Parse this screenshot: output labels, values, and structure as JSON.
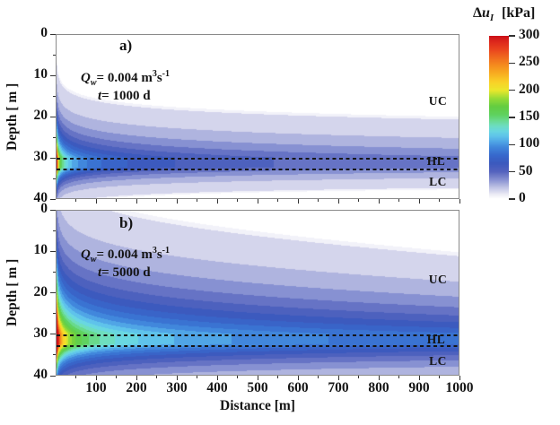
{
  "figure": {
    "background": "#ffffff"
  },
  "colorbar": {
    "title": {
      "delta": "Δ",
      "var": "u",
      "sub": "I",
      "units": "[kPa]"
    },
    "min": 0,
    "max": 300,
    "tick_values": [
      300,
      250,
      200,
      150,
      100,
      50,
      0
    ],
    "tick_labels": [
      "300",
      "250",
      "200",
      "150",
      "100",
      "50",
      "0"
    ],
    "stops": [
      [
        0,
        255,
        255,
        255
      ],
      [
        8,
        235,
        235,
        245
      ],
      [
        20,
        195,
        198,
        230
      ],
      [
        35,
        135,
        145,
        210
      ],
      [
        50,
        85,
        100,
        190
      ],
      [
        65,
        60,
        90,
        190
      ],
      [
        80,
        55,
        105,
        205
      ],
      [
        95,
        65,
        135,
        220
      ],
      [
        105,
        80,
        165,
        230
      ],
      [
        115,
        95,
        195,
        235
      ],
      [
        125,
        105,
        215,
        225
      ],
      [
        135,
        110,
        222,
        190
      ],
      [
        145,
        105,
        218,
        140
      ],
      [
        155,
        95,
        210,
        95
      ],
      [
        170,
        100,
        205,
        65
      ],
      [
        185,
        150,
        220,
        55
      ],
      [
        200,
        235,
        232,
        45
      ],
      [
        215,
        250,
        210,
        40
      ],
      [
        235,
        248,
        165,
        32
      ],
      [
        255,
        243,
        120,
        30
      ],
      [
        275,
        235,
        70,
        30
      ],
      [
        290,
        222,
        40,
        28
      ],
      [
        300,
        205,
        18,
        25
      ]
    ]
  },
  "x_axis": {
    "label": "Distance [m]",
    "min": 0,
    "max": 1000,
    "major_ticks": [
      100,
      200,
      300,
      400,
      500,
      600,
      700,
      800,
      900,
      1000
    ],
    "major_tick_labels": [
      "100",
      "200",
      "300",
      "400",
      "500",
      "600",
      "700",
      "800",
      "900",
      "1000"
    ],
    "minor_step": 50
  },
  "y_axis": {
    "label": "Depth [ m ]",
    "min": 0,
    "max": 40,
    "major_ticks": [
      0,
      10,
      20,
      30,
      40
    ],
    "major_tick_labels": [
      "0",
      "10",
      "20",
      "30",
      "40"
    ],
    "minor_step": 5
  },
  "chart_data": [
    {
      "type": "contour",
      "panel_label": "a)",
      "annotations": {
        "q_var": "Q",
        "q_sub": "w",
        "q_eq": "= 0.004 m",
        "q_sup": "3",
        "q_unit": "s",
        "q_sup2": "-1",
        "t_var": "t",
        "t_eq": "= 1000 d"
      },
      "region_labels": [
        "UC",
        "HL",
        "LC"
      ],
      "dashed_line_depths_m": [
        30,
        32.5
      ],
      "value_range_kpa": [
        0,
        300
      ],
      "x_range_m": [
        0,
        1000
      ],
      "depth_range_m": [
        0,
        40
      ],
      "contour_band_step_kpa": 10,
      "field_model": {
        "amplitude_kpa": 330,
        "radial_decay_exponent": 0.3,
        "sigma_up_m": 6.5,
        "sigma_up_slope": 0,
        "sigma_down_m": 3.5,
        "screen_top_m": 30,
        "screen_bottom_m": 32.5,
        "max_kpa": 300
      }
    },
    {
      "type": "contour",
      "panel_label": "b)",
      "annotations": {
        "q_var": "Q",
        "q_sub": "w",
        "q_eq": "= 0.004 m",
        "q_sup": "3",
        "q_unit": "s",
        "q_sup2": "-1",
        "t_var": "t",
        "t_eq": "= 5000 d"
      },
      "region_labels": [
        "UC",
        "HL",
        "LC"
      ],
      "dashed_line_depths_m": [
        30,
        32.5
      ],
      "value_range_kpa": [
        0,
        300
      ],
      "x_range_m": [
        0,
        1000
      ],
      "depth_range_m": [
        0,
        40
      ],
      "contour_band_step_kpa": 10,
      "field_model": {
        "amplitude_kpa": 430,
        "radial_decay_exponent": 0.24,
        "sigma_up_m": 12,
        "sigma_up_slope": -3,
        "sigma_down_m": 5.5,
        "screen_top_m": 30,
        "screen_bottom_m": 32.5,
        "max_kpa": 300
      }
    }
  ]
}
